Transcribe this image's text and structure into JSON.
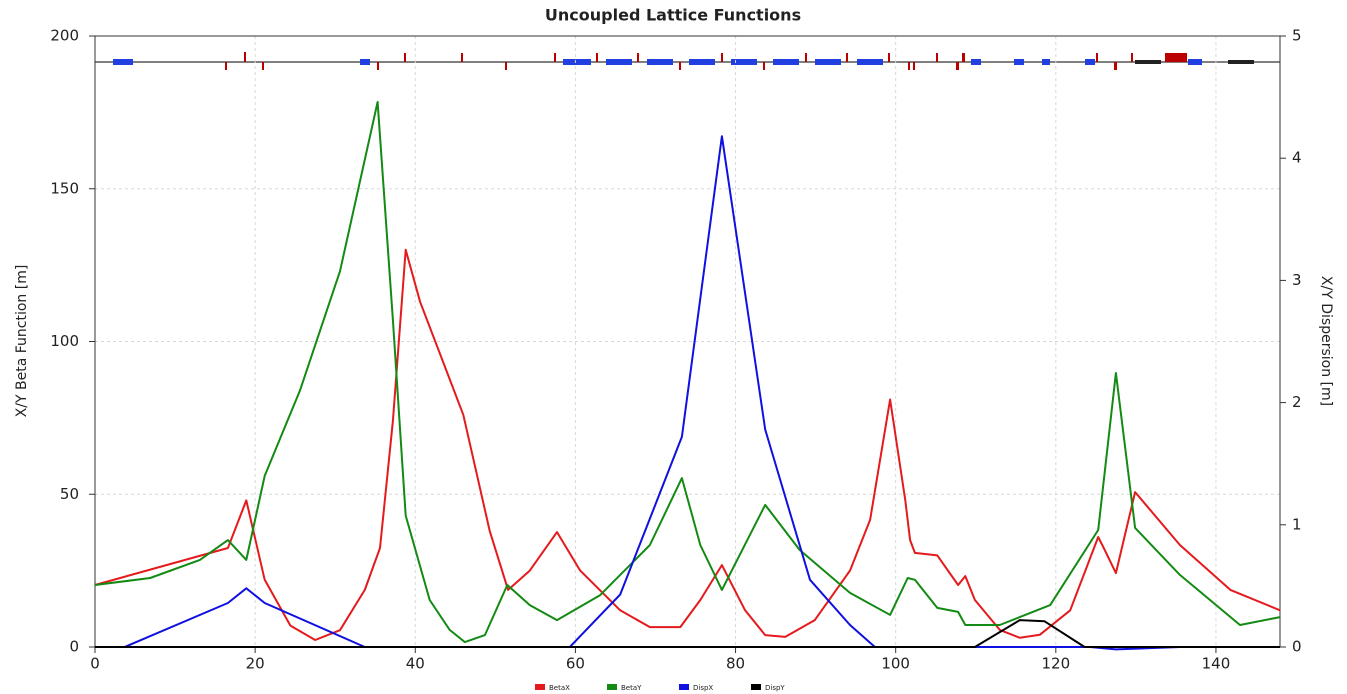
{
  "chart_data": {
    "type": "line",
    "title": "Uncoupled Lattice Functions",
    "y_label": "X/Y Beta Function [m]",
    "y2_label": "X/Y Dispersion [m]",
    "xlim": [
      0,
      148
    ],
    "xticks": [
      0,
      20,
      40,
      60,
      80,
      100,
      120,
      140
    ],
    "ylim": [
      0,
      200
    ],
    "yticks": [
      0,
      50,
      100,
      150,
      200
    ],
    "y2lim": [
      0,
      5
    ],
    "y2ticks": [
      0,
      1,
      2,
      3,
      4,
      5
    ],
    "grid": true,
    "legend": "bottom",
    "series": [
      {
        "name": "BetaX",
        "color": "#e41a1c",
        "x": [
          0,
          16.6,
          18.9,
          21.2,
          24.4,
          27.5,
          30.6,
          33.7,
          35.6,
          37.2,
          38.8,
          40.6,
          46,
          49.3,
          51.6,
          54.3,
          57.7,
          60.6,
          65.6,
          69.3,
          73.1,
          75.6,
          78.3,
          81.2,
          83.7,
          86.2,
          89.9,
          94.3,
          96.8,
          99.3,
          101.2,
          101.8,
          102.4,
          105.2,
          107.8,
          108.7,
          109.9,
          113,
          115.5,
          118,
          121.8,
          125.3,
          126.1,
          127.5,
          129.9,
          135.5,
          141.8,
          148
        ],
        "values": [
          20.3,
          32.4,
          48,
          22,
          7,
          2.3,
          5.5,
          18.7,
          32.4,
          74,
          130,
          113,
          76,
          38,
          18.7,
          25,
          37.6,
          25,
          12,
          6.5,
          6.5,
          15.4,
          26.8,
          12,
          3.9,
          3.3,
          8.8,
          25,
          41.6,
          81,
          48,
          35,
          30.8,
          30,
          20.3,
          23.2,
          15.4,
          5.6,
          3,
          4,
          12,
          36,
          31.8,
          24.2,
          50.7,
          33.4,
          18.7,
          12
        ]
      },
      {
        "name": "BetaY",
        "color": "#138a13",
        "x": [
          0,
          6.9,
          13.1,
          16.6,
          18.9,
          21.2,
          25.6,
          30.6,
          35.3,
          37.2,
          38.8,
          41.8,
          44.3,
          46.2,
          48.7,
          51.5,
          54.3,
          57.7,
          63.1,
          69.3,
          73.3,
          75.6,
          78.3,
          83.7,
          88,
          94.3,
          99.3,
          101.5,
          102.4,
          105.2,
          107.8,
          108.7,
          113,
          119.3,
          125.3,
          127.5,
          129.9,
          135.5,
          143,
          148
        ],
        "values": [
          20.3,
          22.6,
          28.5,
          35,
          28.5,
          56,
          84,
          123,
          178.4,
          107,
          43,
          15.4,
          5.6,
          1.6,
          3.9,
          20.3,
          13.7,
          8.8,
          17,
          33.4,
          55.3,
          33.4,
          18.7,
          46.5,
          31.8,
          17.7,
          10.5,
          22.6,
          22,
          12.8,
          11.5,
          7.2,
          7.2,
          13.7,
          38.3,
          89.7,
          39,
          23.6,
          7.2,
          9.8
        ]
      },
      {
        "name": "DispX",
        "color": "#1010e0",
        "axis": "y2",
        "x": [
          0,
          3.7,
          16.6,
          18.9,
          21.2,
          33.7,
          59.3,
          65.6,
          73.3,
          78.3,
          83.7,
          89.3,
          94.3,
          97.4,
          124.3,
          127.5,
          135.5,
          148
        ],
        "values": [
          0,
          0,
          0.36,
          0.48,
          0.36,
          0,
          0,
          0.43,
          1.72,
          4.18,
          1.78,
          0.55,
          0.18,
          0,
          0,
          -0.02,
          0,
          0
        ]
      },
      {
        "name": "DispY",
        "color": "#000000",
        "axis": "y2",
        "x": [
          0,
          109.9,
          115.5,
          118.6,
          123.6,
          148
        ],
        "values": [
          0,
          0,
          0.22,
          0.21,
          0,
          0
        ]
      }
    ]
  }
}
